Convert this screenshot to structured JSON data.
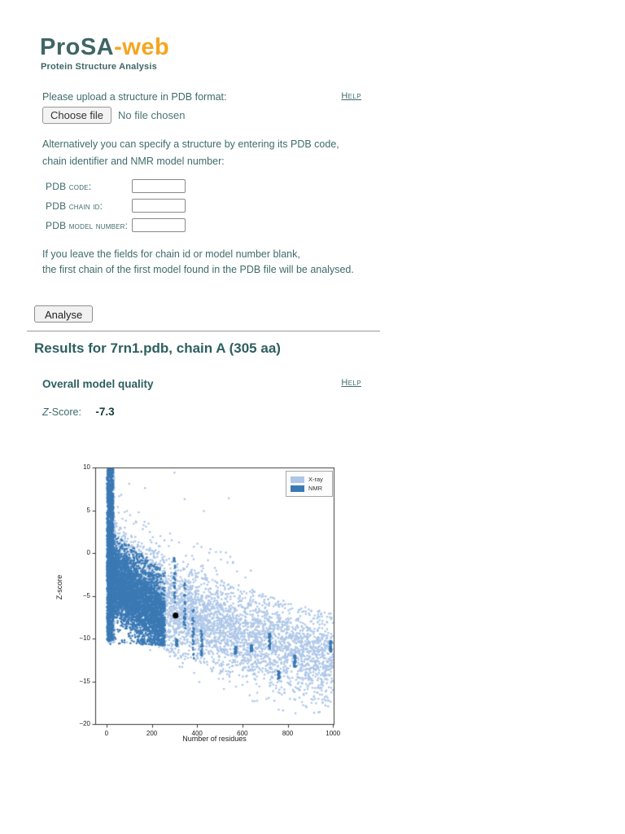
{
  "header": {
    "brand_primary": "ProSA",
    "brand_accent": "-web",
    "subtitle": "Protein Structure Analysis"
  },
  "colors": {
    "brand_teal": "#3f6565",
    "brand_orange": "#f5a61f",
    "xray_blue": "#aec7e8",
    "nmr_blue": "#3b79b4"
  },
  "upload": {
    "prompt": "Please upload a structure in PDB format:",
    "help_label": "Help",
    "choose_file_label": "Choose file",
    "file_status": "No file chosen"
  },
  "alt_entry": {
    "line1": "Alternatively you can specify a structure by entering its PDB code,",
    "line2": "chain identifier and NMR model number:",
    "fields": [
      {
        "label": "PDB code:"
      },
      {
        "label": "PDB chain id:"
      },
      {
        "label": "PDB model number:"
      }
    ],
    "note_line1": "If you leave the fields for chain id or model number blank,",
    "note_line2": "the first chain of the first model found in the PDB file will be analysed.",
    "analyse_label": "Analyse"
  },
  "results": {
    "heading": "Results for 7rn1.pdb, chain A (305 aa)",
    "overall_title": "Overall model quality",
    "help_label": "Help",
    "zscore_label_z": "Z",
    "zscore_label_rest": "-Score:",
    "zscore_value": "-7.3"
  },
  "chart_data": {
    "type": "scatter",
    "title": "",
    "xlabel": "Number of residues",
    "ylabel": "Z-score",
    "xlim": [
      -50,
      1003
    ],
    "ylim": [
      -20,
      10
    ],
    "x_ticks": [
      0,
      200,
      400,
      600,
      800,
      1000
    ],
    "y_ticks": [
      10,
      5,
      0,
      -5,
      -10,
      -15,
      -20
    ],
    "grid": false,
    "legend": {
      "position": "upper right",
      "entries": [
        {
          "label": "X-ray",
          "color": "#aec7e8"
        },
        {
          "label": "NMR",
          "color": "#3b79b4"
        }
      ]
    },
    "highlight_point": {
      "x": 305,
      "y": -7.3,
      "color": "#000000"
    },
    "series": [
      {
        "name": "X-ray",
        "color": "#aec7e8",
        "marker": "dot",
        "cloud": {
          "points": 5200,
          "n_min": 3,
          "n_pow": 1.5,
          "trend": {
            "a": 1.0,
            "b": -0.43,
            "pow": 0.5
          },
          "spread_sd": 2.6,
          "band_halfwidth": 5.5
        },
        "left_spike": {
          "points": 650,
          "n_range": [
            3,
            35
          ],
          "z_range": [
            -10.5,
            9.8
          ]
        },
        "halo_above": 70,
        "halo_below": 45,
        "outliers": [
          [
            170,
            7.6
          ],
          [
            300,
            9.4
          ],
          [
            345,
            6.3
          ],
          [
            540,
            6.4
          ],
          [
            430,
            4.9
          ],
          [
            100,
            8.1
          ],
          [
            65,
            6.8
          ]
        ]
      },
      {
        "name": "NMR",
        "color": "#3b79b4",
        "marker": "dot",
        "cloud": {
          "points": 3800,
          "n_min": 8,
          "n_span": 250,
          "n_pow": 1.25,
          "trend": {
            "a": -2.6,
            "b": -0.021
          },
          "spread_sd": 2.3,
          "clip_hi": {
            "a": 3.0,
            "b": -0.02
          },
          "clip_lo": -10.8
        },
        "left_spike": {
          "points": 1400,
          "n_range": [
            2,
            30
          ],
          "z_range": [
            -10.3,
            9.9
          ]
        },
        "streaks": [
          {
            "n": 300,
            "z": [
              -0.5,
              -6.0
            ]
          },
          {
            "n": 310,
            "z": [
              -10.0,
              -10.9
            ]
          },
          {
            "n": 345,
            "z": [
              -3.5,
              -9.0
            ]
          },
          {
            "n": 383,
            "z": [
              -6.5,
              -13.0
            ]
          },
          {
            "n": 420,
            "z": [
              -9.0,
              -12.0
            ]
          },
          {
            "n": 570,
            "z": [
              -11.0,
              -11.8
            ]
          },
          {
            "n": 640,
            "z": [
              -10.8,
              -11.5
            ]
          },
          {
            "n": 720,
            "z": [
              -9.4,
              -11.2
            ]
          },
          {
            "n": 760,
            "z": [
              -13.8,
              -14.8
            ]
          },
          {
            "n": 832,
            "z": [
              -12.0,
              -13.3
            ]
          },
          {
            "n": 990,
            "z": [
              -10.2,
              -11.6
            ]
          }
        ]
      }
    ]
  }
}
